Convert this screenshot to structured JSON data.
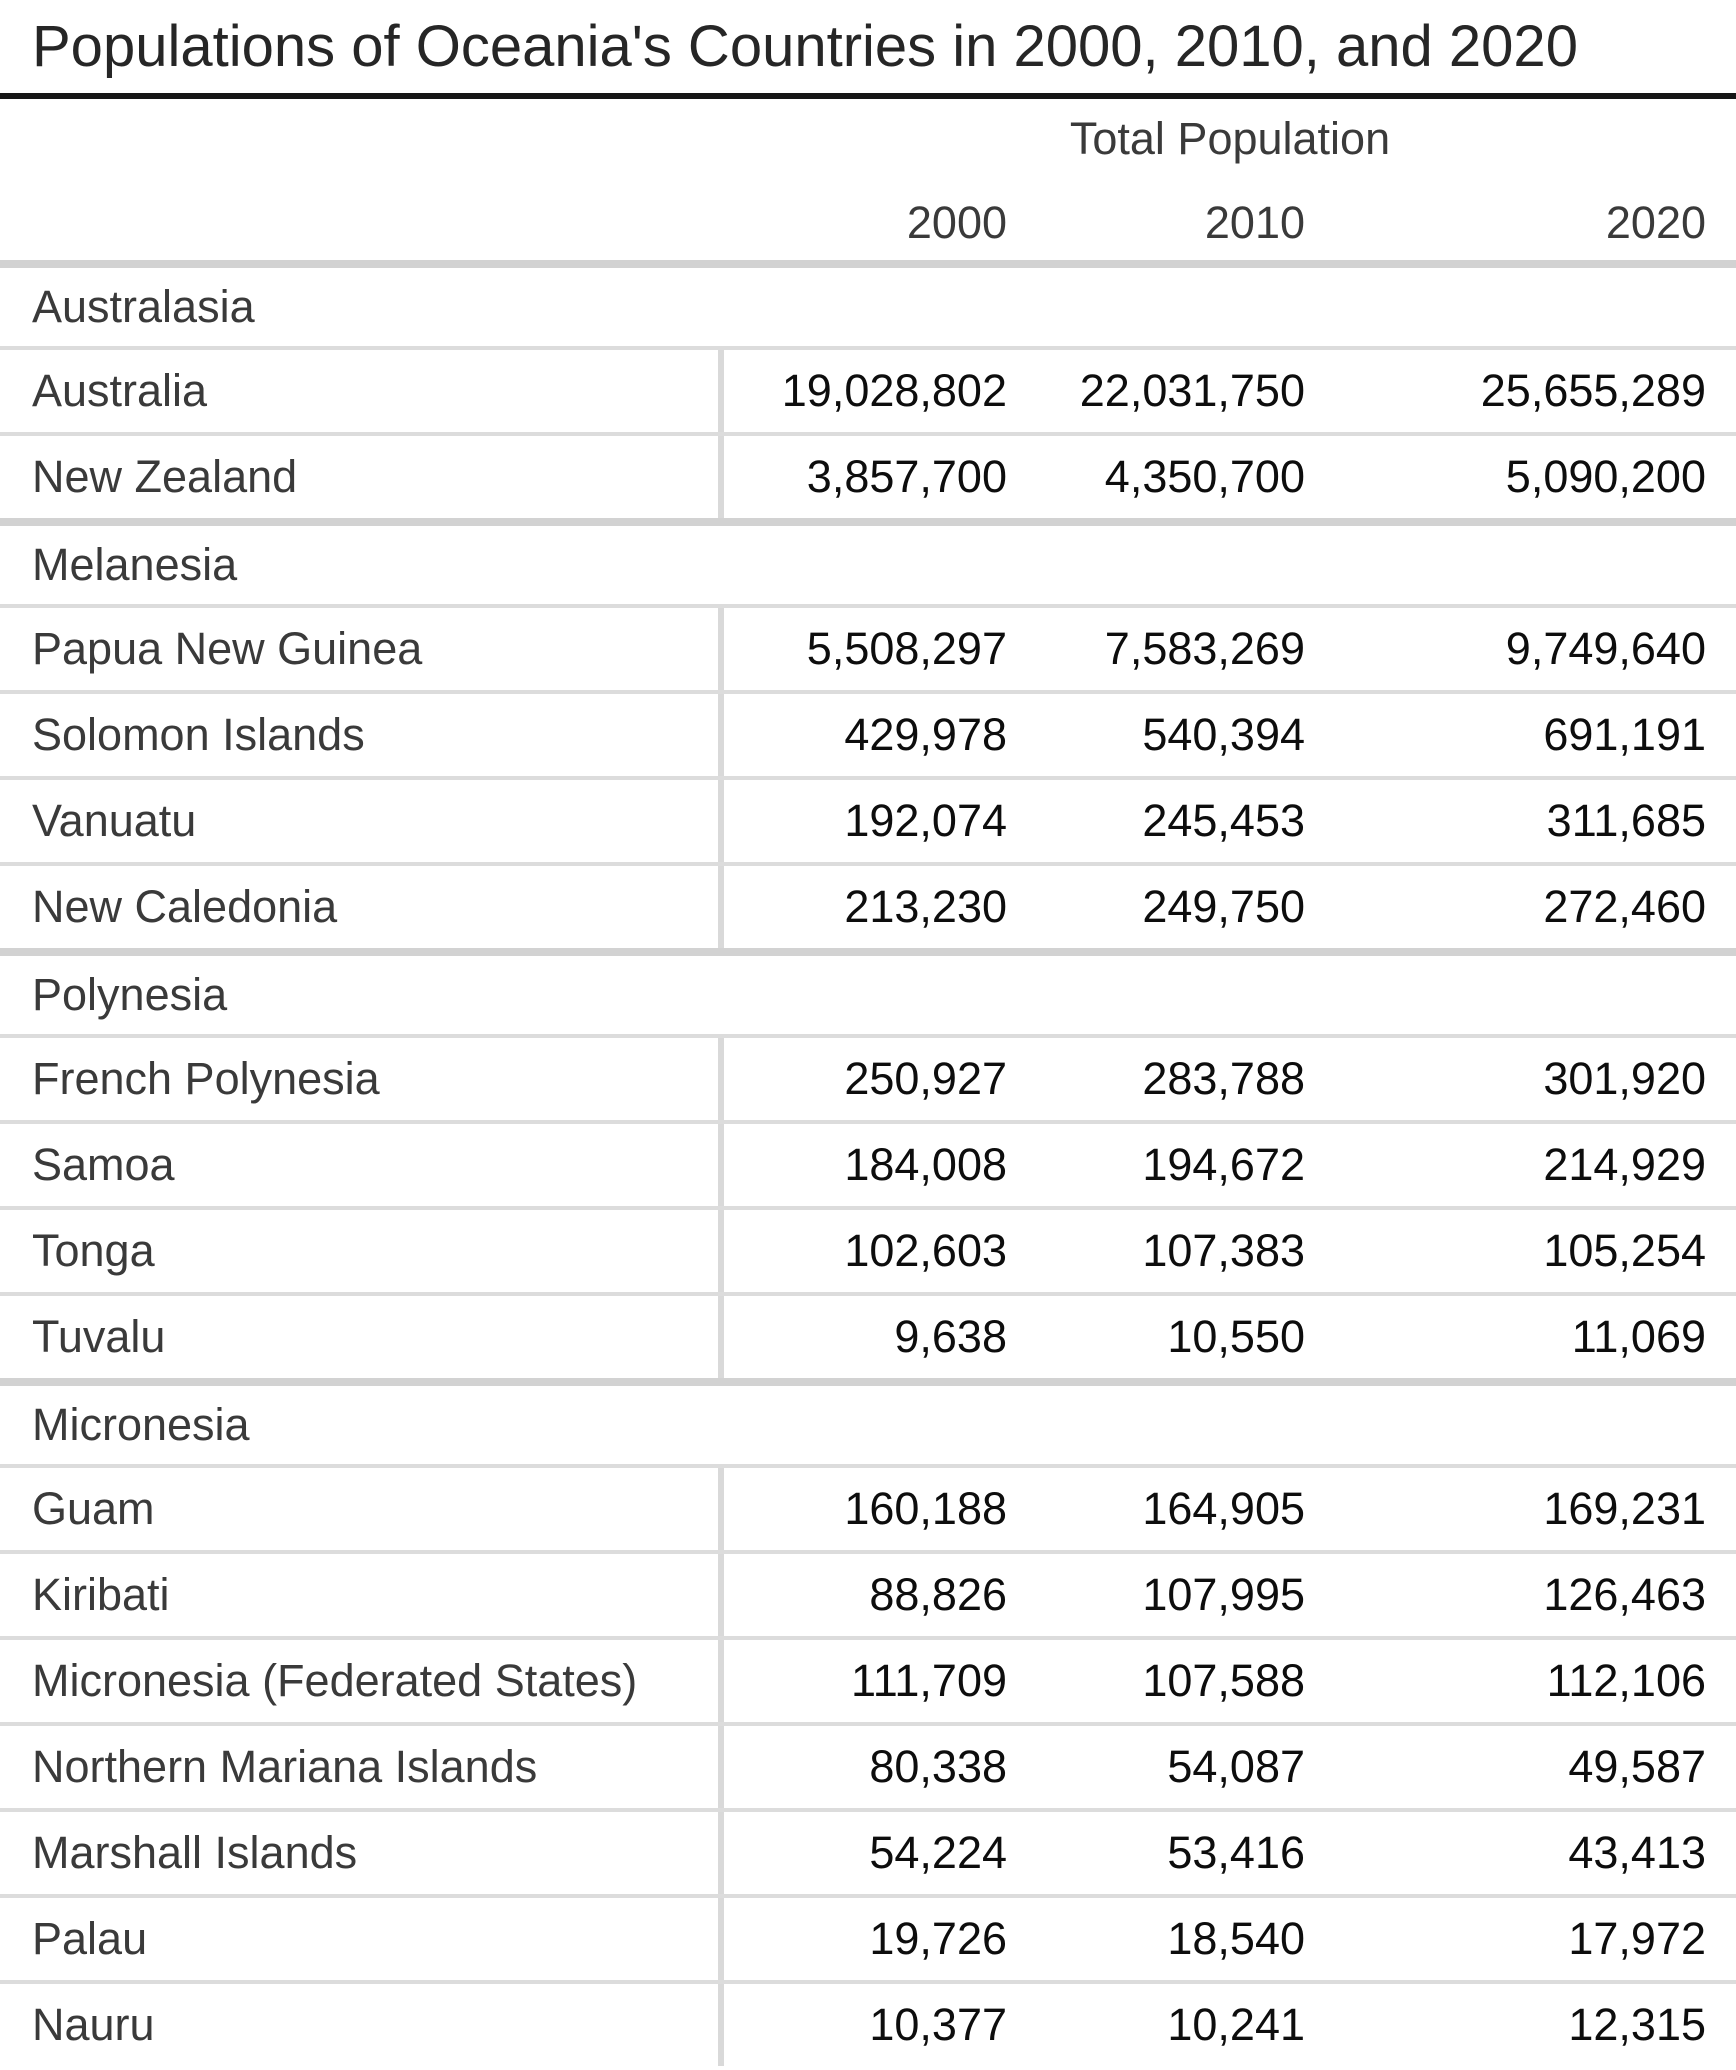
{
  "title": "Populations of Oceania's Countries in 2000, 2010, and 2020",
  "header": {
    "spanner": "Total Population",
    "years": [
      "2000",
      "2010",
      "2020"
    ]
  },
  "table": {
    "groups": [
      {
        "name": "Australasia",
        "rows": [
          {
            "country": "Australia",
            "values": [
              "19,028,802",
              "22,031,750",
              "25,655,289"
            ]
          },
          {
            "country": "New Zealand",
            "values": [
              "3,857,700",
              "4,350,700",
              "5,090,200"
            ]
          }
        ]
      },
      {
        "name": "Melanesia",
        "rows": [
          {
            "country": "Papua New Guinea",
            "values": [
              "5,508,297",
              "7,583,269",
              "9,749,640"
            ]
          },
          {
            "country": "Solomon Islands",
            "values": [
              "429,978",
              "540,394",
              "691,191"
            ]
          },
          {
            "country": "Vanuatu",
            "values": [
              "192,074",
              "245,453",
              "311,685"
            ]
          },
          {
            "country": "New Caledonia",
            "values": [
              "213,230",
              "249,750",
              "272,460"
            ]
          }
        ]
      },
      {
        "name": "Polynesia",
        "rows": [
          {
            "country": "French Polynesia",
            "values": [
              "250,927",
              "283,788",
              "301,920"
            ]
          },
          {
            "country": "Samoa",
            "values": [
              "184,008",
              "194,672",
              "214,929"
            ]
          },
          {
            "country": "Tonga",
            "values": [
              "102,603",
              "107,383",
              "105,254"
            ]
          },
          {
            "country": "Tuvalu",
            "values": [
              "9,638",
              "10,550",
              "11,069"
            ]
          }
        ]
      },
      {
        "name": "Micronesia",
        "rows": [
          {
            "country": "Guam",
            "values": [
              "160,188",
              "164,905",
              "169,231"
            ]
          },
          {
            "country": "Kiribati",
            "values": [
              "88,826",
              "107,995",
              "126,463"
            ]
          },
          {
            "country": "Micronesia (Federated States)",
            "values": [
              "111,709",
              "107,588",
              "112,106"
            ]
          },
          {
            "country": "Northern Mariana Islands",
            "values": [
              "80,338",
              "54,087",
              "49,587"
            ]
          },
          {
            "country": "Marshall Islands",
            "values": [
              "54,224",
              "53,416",
              "43,413"
            ]
          },
          {
            "country": "Palau",
            "values": [
              "19,726",
              "18,540",
              "17,972"
            ]
          },
          {
            "country": "Nauru",
            "values": [
              "10,377",
              "10,241",
              "12,315"
            ]
          }
        ]
      }
    ]
  },
  "colors": {
    "title_text": "#262626",
    "title_rule": "#161616",
    "label_text": "#3a3a3a",
    "number_text": "#0d0d0d",
    "row_line": "#dcdcdc",
    "group_line": "#d2d2d2",
    "column_divider": "#d9d9d9",
    "background": "#ffffff"
  },
  "chart_data": {
    "type": "table",
    "title": "Populations of Oceania's Countries in 2000, 2010, and 2020",
    "column_spanner": "Total Population",
    "columns": [
      "2000",
      "2010",
      "2020"
    ],
    "groups": [
      {
        "name": "Australasia",
        "rows": [
          {
            "country": "Australia",
            "values": [
              19028802,
              22031750,
              25655289
            ]
          },
          {
            "country": "New Zealand",
            "values": [
              3857700,
              4350700,
              5090200
            ]
          }
        ]
      },
      {
        "name": "Melanesia",
        "rows": [
          {
            "country": "Papua New Guinea",
            "values": [
              5508297,
              7583269,
              9749640
            ]
          },
          {
            "country": "Solomon Islands",
            "values": [
              429978,
              540394,
              691191
            ]
          },
          {
            "country": "Vanuatu",
            "values": [
              192074,
              245453,
              311685
            ]
          },
          {
            "country": "New Caledonia",
            "values": [
              213230,
              249750,
              272460
            ]
          }
        ]
      },
      {
        "name": "Polynesia",
        "rows": [
          {
            "country": "French Polynesia",
            "values": [
              250927,
              283788,
              301920
            ]
          },
          {
            "country": "Samoa",
            "values": [
              184008,
              194672,
              214929
            ]
          },
          {
            "country": "Tonga",
            "values": [
              102603,
              107383,
              105254
            ]
          },
          {
            "country": "Tuvalu",
            "values": [
              9638,
              10550,
              11069
            ]
          }
        ]
      },
      {
        "name": "Micronesia",
        "rows": [
          {
            "country": "Guam",
            "values": [
              160188,
              164905,
              169231
            ]
          },
          {
            "country": "Kiribati",
            "values": [
              88826,
              107995,
              126463
            ]
          },
          {
            "country": "Micronesia (Federated States)",
            "values": [
              111709,
              107588,
              112106
            ]
          },
          {
            "country": "Northern Mariana Islands",
            "values": [
              80338,
              54087,
              49587
            ]
          },
          {
            "country": "Marshall Islands",
            "values": [
              54224,
              53416,
              43413
            ]
          },
          {
            "country": "Palau",
            "values": [
              19726,
              18540,
              17972
            ]
          },
          {
            "country": "Nauru",
            "values": [
              10377,
              10241,
              12315
            ]
          }
        ]
      }
    ]
  }
}
